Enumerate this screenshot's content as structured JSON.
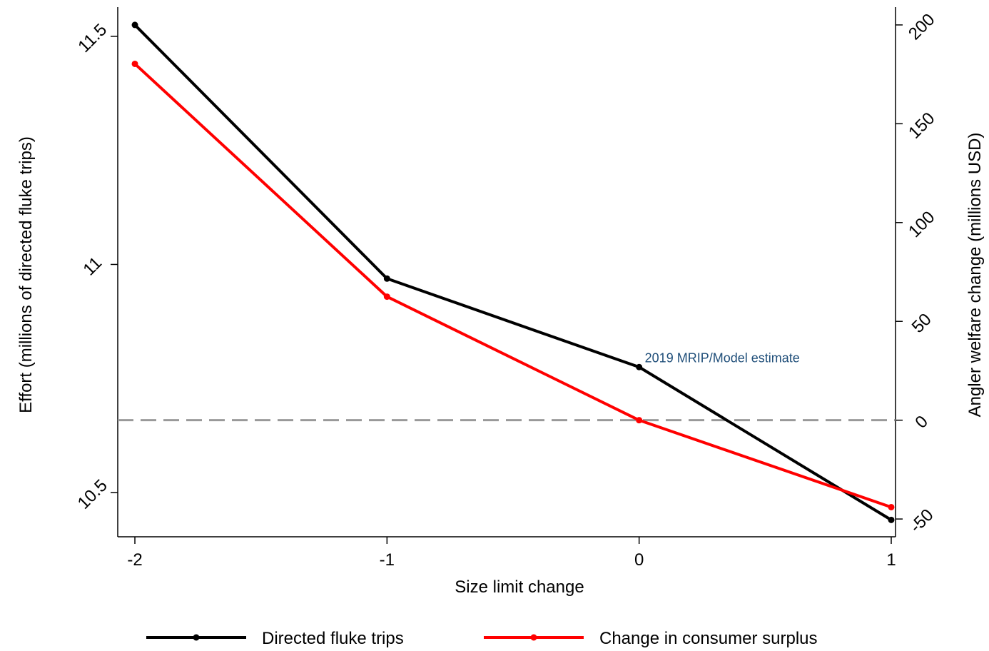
{
  "chart_data": {
    "type": "line",
    "x_label": "Size limit change",
    "y_label": "Effort (millions of directed fluke trips)",
    "y2_label": "Angler welfare change (millions USD)",
    "x": [
      -2,
      -1,
      0,
      1
    ],
    "xlim": [
      -2.068,
      1.017
    ],
    "xticks": [
      -2,
      -1,
      0,
      1
    ],
    "ylim": [
      10.403,
      11.564
    ],
    "yticks": [
      10.5,
      11,
      11.5
    ],
    "y2lim": [
      -59,
      209
    ],
    "y2ticks": [
      -50,
      0,
      50,
      100,
      150,
      200
    ],
    "series": [
      {
        "name": "Directed fluke trips",
        "color": "#000000",
        "values": [
          11.525,
          10.969,
          10.775,
          10.44
        ]
      },
      {
        "name": "Change in consumer surplus",
        "color": "#ff0000",
        "axis": "y2",
        "values": [
          180.3,
          62.5,
          0,
          -44
        ]
      }
    ],
    "reference_line": {
      "value": 0,
      "axis": "y2",
      "color": "#999999"
    },
    "annotations": [
      {
        "text": "2019 MRIP/Model estimate",
        "x": 0,
        "color": "#1f4e79"
      }
    ],
    "legend": "bottom"
  }
}
